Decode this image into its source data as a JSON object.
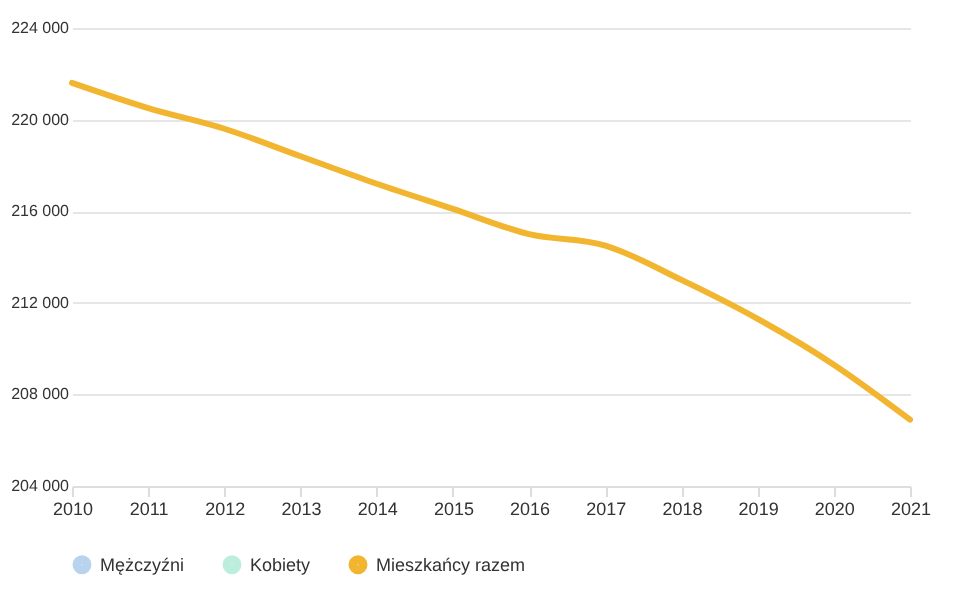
{
  "chart_data": {
    "type": "line",
    "x": [
      2010,
      2011,
      2012,
      2013,
      2014,
      2015,
      2016,
      2017,
      2018,
      2019,
      2020,
      2021
    ],
    "series": [
      {
        "name": "Mężczyźni",
        "color": "#b9d3ee",
        "values": [
          null,
          null,
          null,
          null,
          null,
          null,
          null,
          null,
          null,
          null,
          null,
          null
        ]
      },
      {
        "name": "Kobiety",
        "color": "#bdeedd",
        "values": [
          null,
          null,
          null,
          null,
          null,
          null,
          null,
          null,
          null,
          null,
          null,
          null
        ]
      },
      {
        "name": "Mieszkańcy razem",
        "color": "#f2b530",
        "values": [
          221600,
          220500,
          219600,
          218400,
          217200,
          216100,
          215000,
          214500,
          213000,
          211300,
          209300,
          206900
        ]
      }
    ],
    "xlim": [
      2010,
      2021
    ],
    "xticks": [
      2010,
      2011,
      2012,
      2013,
      2014,
      2015,
      2016,
      2017,
      2018,
      2019,
      2020,
      2021
    ],
    "ylim": [
      204000,
      224000
    ],
    "yticks": [
      204000,
      208000,
      212000,
      216000,
      220000,
      224000
    ],
    "grid": "y",
    "legend": "bottom",
    "marker": "none",
    "line_style": "solid"
  }
}
